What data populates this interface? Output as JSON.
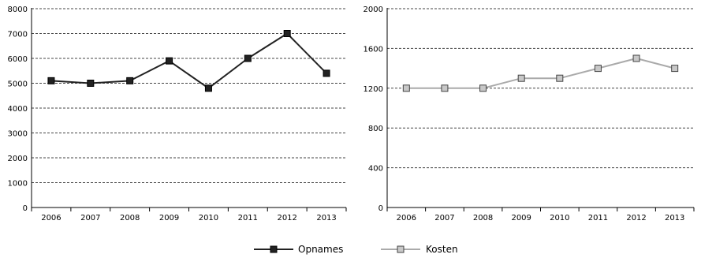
{
  "chart_data": [
    {
      "type": "line",
      "categories": [
        "2006",
        "2007",
        "2008",
        "2009",
        "2010",
        "2011",
        "2012",
        "2013"
      ],
      "series": [
        {
          "name": "Opnames",
          "values": [
            5100,
            5000,
            5100,
            5900,
            4800,
            6000,
            7000,
            5400
          ],
          "color": "#222222",
          "marker": "filled-square"
        }
      ],
      "ylim": [
        0,
        8000
      ],
      "yticks": [
        "0",
        "1000",
        "2000",
        "3000",
        "4000",
        "5000",
        "6000",
        "7000",
        "8000"
      ],
      "grid": "horizontal-dashed"
    },
    {
      "type": "line",
      "categories": [
        "2006",
        "2007",
        "2008",
        "2009",
        "2010",
        "2011",
        "2012",
        "2013"
      ],
      "series": [
        {
          "name": "Kosten",
          "values": [
            1200,
            1200,
            1200,
            1300,
            1300,
            1400,
            1500,
            1400
          ],
          "color": "#aaaaaa",
          "marker": "grey-square"
        }
      ],
      "ylim": [
        0,
        2000
      ],
      "yticks": [
        "0",
        "400",
        "800",
        "1200",
        "1600",
        "2000"
      ],
      "grid": "horizontal-dashed"
    }
  ],
  "legend": {
    "position": "bottom-center",
    "items": [
      {
        "label": "Opnames",
        "color": "#222222",
        "marker": "filled-square"
      },
      {
        "label": "Kosten",
        "color": "#aaaaaa",
        "marker": "grey-square"
      }
    ]
  }
}
